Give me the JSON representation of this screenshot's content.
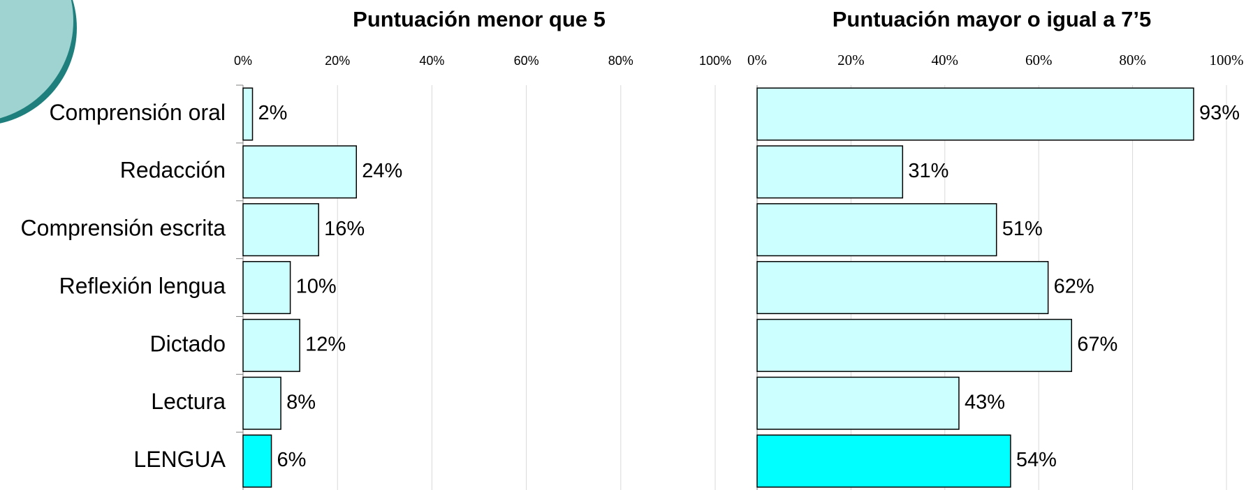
{
  "chart_data": [
    {
      "type": "barh",
      "title": "Puntuación menor que 5",
      "categories": [
        "Comprensión oral",
        "Redacción",
        "Comprensión escrita",
        "Reflexión lengua",
        "Dictado",
        "Lectura",
        "LENGUA"
      ],
      "values": [
        2,
        24,
        16,
        10,
        12,
        8,
        6
      ],
      "value_labels": [
        "2%",
        "24%",
        "16%",
        "10%",
        "12%",
        "8%",
        "6%"
      ],
      "colors": [
        "#ccffff",
        "#ccffff",
        "#ccffff",
        "#ccffff",
        "#ccffff",
        "#ccffff",
        "#00ffff"
      ],
      "xlim": [
        0,
        100
      ],
      "xticks": [
        {
          "value": 0,
          "label": "0%"
        },
        {
          "value": 20,
          "label": "20%"
        },
        {
          "value": 40,
          "label": "40%"
        },
        {
          "value": 60,
          "label": "60%"
        },
        {
          "value": 80,
          "label": "80%"
        },
        {
          "value": 100,
          "label": "100%"
        }
      ],
      "grid": true
    },
    {
      "type": "barh",
      "title": "Puntuación mayor o igual a 7’5",
      "values": [
        93,
        31,
        51,
        62,
        67,
        43,
        54
      ],
      "value_labels": [
        "93%",
        "31%",
        "51%",
        "62%",
        "67%",
        "43%",
        "54%"
      ],
      "colors": [
        "#ccffff",
        "#ccffff",
        "#ccffff",
        "#ccffff",
        "#ccffff",
        "#ccffff",
        "#00ffff"
      ],
      "xlim": [
        0,
        100
      ],
      "xticks": [
        {
          "value": 0,
          "label": "0%"
        },
        {
          "value": 20,
          "label": "20%"
        },
        {
          "value": 40,
          "label": "40%"
        },
        {
          "value": 60,
          "label": "60%"
        },
        {
          "value": 80,
          "label": "80%"
        },
        {
          "value": 100,
          "label": "100%"
        }
      ],
      "grid": true
    }
  ]
}
